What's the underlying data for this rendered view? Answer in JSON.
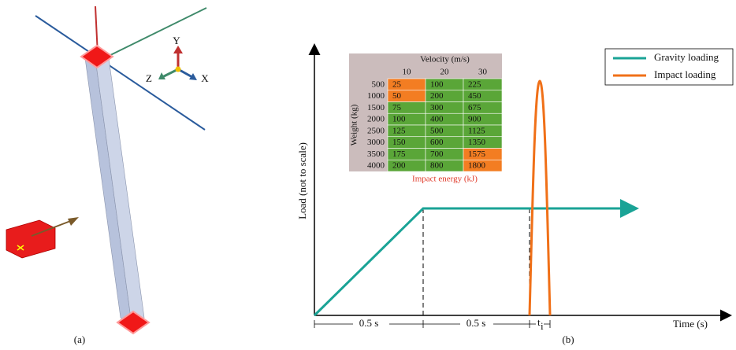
{
  "figure_a": {
    "label": "(a)",
    "axes": {
      "y": "Y",
      "z": "Z",
      "x": "X"
    }
  },
  "figure_b": {
    "label": "(b)",
    "y_axis_title": "Load (not to scale)",
    "x_axis_title": "Time (s)",
    "intervals": [
      "0.5 s",
      "0.5 s"
    ],
    "impact_duration": {
      "symbol": "t",
      "subscript": "i"
    },
    "legend": [
      "Gravity loading",
      "Impact loading"
    ],
    "table": {
      "column_title": "Velocity (m/s)",
      "columns": [
        10,
        20,
        30
      ],
      "row_title": "Weight (kg)",
      "rows": [
        [
          500,
          25,
          100,
          225
        ],
        [
          1000,
          50,
          200,
          450
        ],
        [
          1500,
          75,
          300,
          675
        ],
        [
          2000,
          100,
          400,
          900
        ],
        [
          2500,
          125,
          500,
          1125
        ],
        [
          3000,
          150,
          600,
          1350
        ],
        [
          3500,
          175,
          700,
          1575
        ],
        [
          4000,
          200,
          800,
          1800
        ]
      ],
      "caption": "Impact energy (kJ)"
    }
  }
}
